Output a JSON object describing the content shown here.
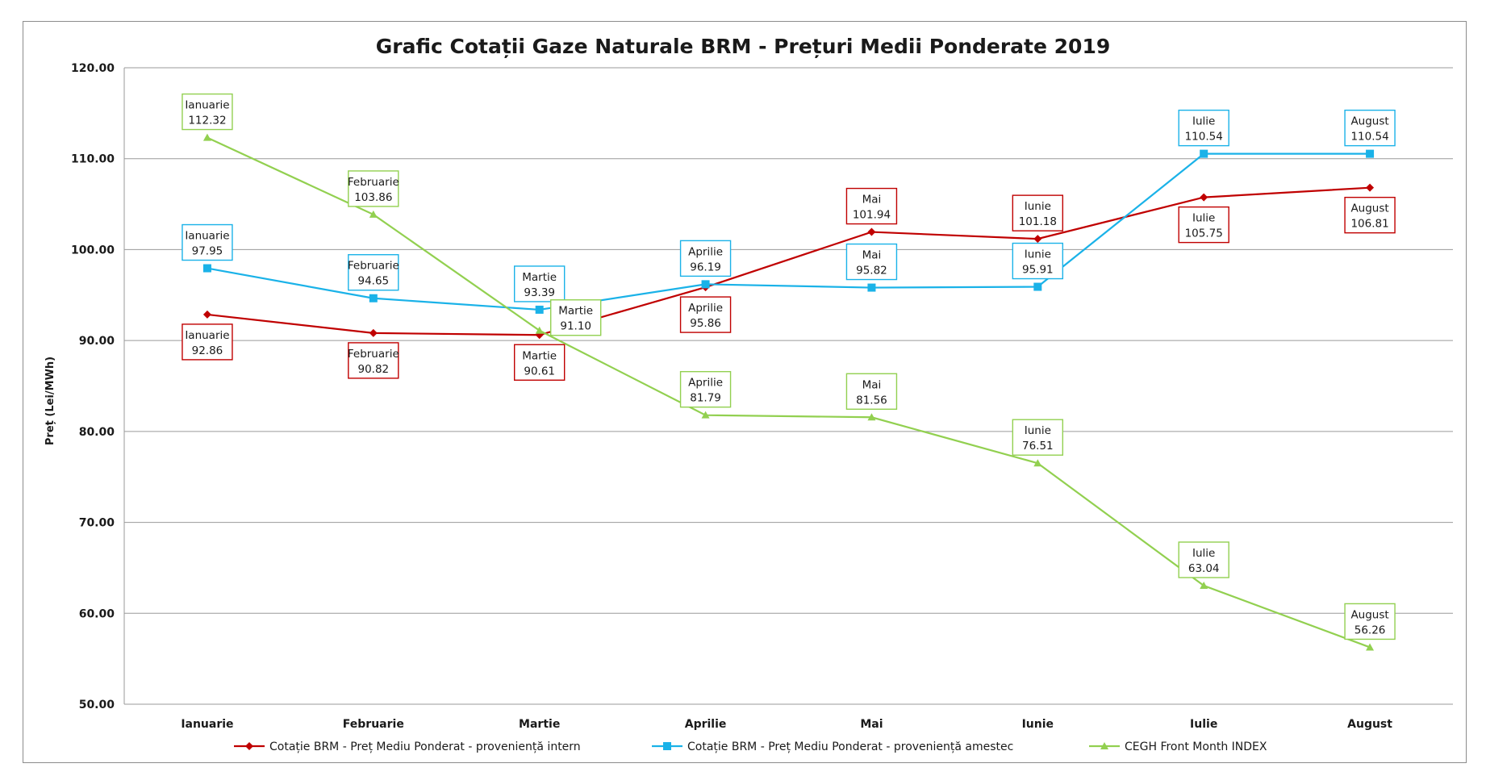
{
  "chart_data": {
    "type": "line",
    "title": "Grafic Cotații Gaze Naturale BRM - Prețuri Medii Ponderate 2019",
    "ylabel": "Preț (Lei/MWh)",
    "xlabel": "",
    "ylim": [
      50,
      120
    ],
    "yticks": [
      "120.00",
      "110.00",
      "100.00",
      "90.00",
      "80.00",
      "70.00",
      "60.00",
      "50.00"
    ],
    "ytick_values": [
      120,
      110,
      100,
      90,
      80,
      70,
      60,
      50
    ],
    "categories": [
      "Ianuarie",
      "Februarie",
      "Martie",
      "Aprilie",
      "Mai",
      "Iunie",
      "Iulie",
      "August"
    ],
    "grid": true,
    "legend_position": "bottom",
    "series": [
      {
        "name": "Cotație BRM - Preț Mediu Ponderat - proveniență intern",
        "color": "#c00000",
        "marker": "diamond",
        "values": [
          92.86,
          90.82,
          90.61,
          95.86,
          101.94,
          101.18,
          105.75,
          106.81
        ],
        "labels": [
          "92.86",
          "90.82",
          "90.61",
          "95.86",
          "101.94",
          "101.18",
          "105.75",
          "106.81"
        ],
        "label_side": [
          "below",
          "below",
          "below",
          "below",
          "above",
          "above",
          "below",
          "below"
        ]
      },
      {
        "name": "Cotație BRM - Preț Mediu Ponderat - proveniență amestec",
        "color": "#1ab2e8",
        "marker": "square",
        "values": [
          97.95,
          94.65,
          93.39,
          96.19,
          95.82,
          95.91,
          110.54,
          110.54
        ],
        "labels": [
          "97.95",
          "94.65",
          "93.39",
          "96.19",
          "95.82",
          "95.91",
          "110.54",
          "110.54"
        ],
        "label_side": [
          "above",
          "above",
          "above",
          "above",
          "above",
          "above",
          "above",
          "above"
        ]
      },
      {
        "name": "CEGH Front Month INDEX",
        "color": "#92d050",
        "marker": "triangle",
        "values": [
          112.32,
          103.86,
          91.1,
          81.79,
          81.56,
          76.51,
          63.04,
          56.26
        ],
        "labels": [
          "112.32",
          "103.86",
          "91.10",
          "81.79",
          "81.56",
          "76.51",
          "63.04",
          "56.26"
        ],
        "label_side": [
          "above",
          "above",
          "right",
          "above",
          "above",
          "above",
          "above",
          "above"
        ]
      }
    ]
  }
}
